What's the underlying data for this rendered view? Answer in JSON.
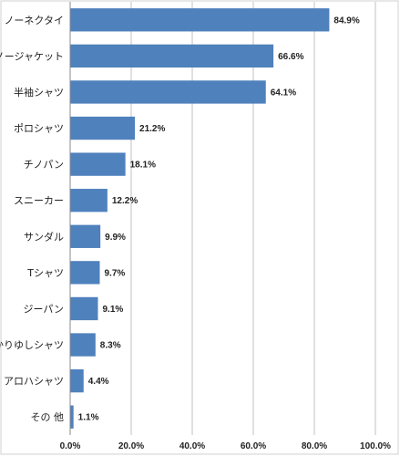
{
  "chart_data": {
    "type": "bar",
    "orientation": "horizontal",
    "categories": [
      "ノーネクタイ",
      "ノージャケット",
      "半袖シャツ",
      "ポロシャツ",
      "チノパン",
      "スニーカー",
      "サンダル",
      "Tシャツ",
      "ジーパン",
      "かりゆしシャツ",
      "アロハシャツ",
      "その 他"
    ],
    "values": [
      84.9,
      66.6,
      64.1,
      21.2,
      18.1,
      12.2,
      9.9,
      9.7,
      9.1,
      8.3,
      4.4,
      1.1
    ],
    "data_labels": [
      "84.9%",
      "66.6%",
      "64.1%",
      "21.2%",
      "18.1%",
      "12.2%",
      "9.9%",
      "9.7%",
      "9.1%",
      "8.3%",
      "4.4%",
      "1.1%"
    ],
    "xlim": [
      0,
      100
    ],
    "x_ticks": [
      0,
      20,
      40,
      60,
      80,
      100
    ],
    "x_tick_labels": [
      "0.0%",
      "20.0%",
      "40.0%",
      "60.0%",
      "80.0%",
      "100.0%"
    ],
    "grid": "vertical",
    "bar_color": "#4f81bd",
    "grid_color": "#c0c0c0",
    "legend": "none"
  }
}
